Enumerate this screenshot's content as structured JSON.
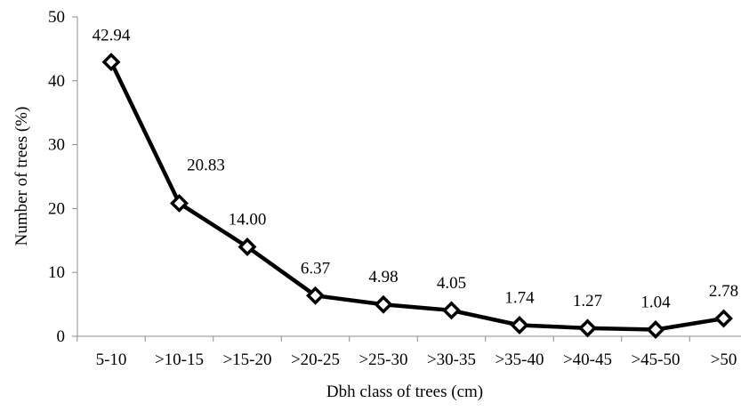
{
  "chart_data": {
    "type": "line",
    "categories": [
      "5-10",
      ">10-15",
      ">15-20",
      ">20-25",
      ">25-30",
      ">30-35",
      ">35-40",
      ">40-45",
      ">45-50",
      ">50"
    ],
    "series": [
      {
        "values": [
          42.94,
          20.83,
          14.0,
          6.37,
          4.98,
          4.05,
          1.74,
          1.27,
          1.04,
          2.78
        ],
        "data_labels": [
          "42.94",
          "20.83",
          "14.00",
          "6.37",
          "4.98",
          "4.05",
          "1.74",
          "1.27",
          "1.04",
          "2.78"
        ],
        "color": "#000000",
        "marker": "diamond"
      }
    ],
    "title": "",
    "xlabel": "Dbh class of trees (cm)",
    "ylabel": "Number of trees (%)",
    "ylim": [
      0,
      50
    ],
    "yticks": [
      "0",
      "10",
      "20",
      "30",
      "40",
      "50"
    ],
    "grid": false,
    "legend": "none"
  }
}
